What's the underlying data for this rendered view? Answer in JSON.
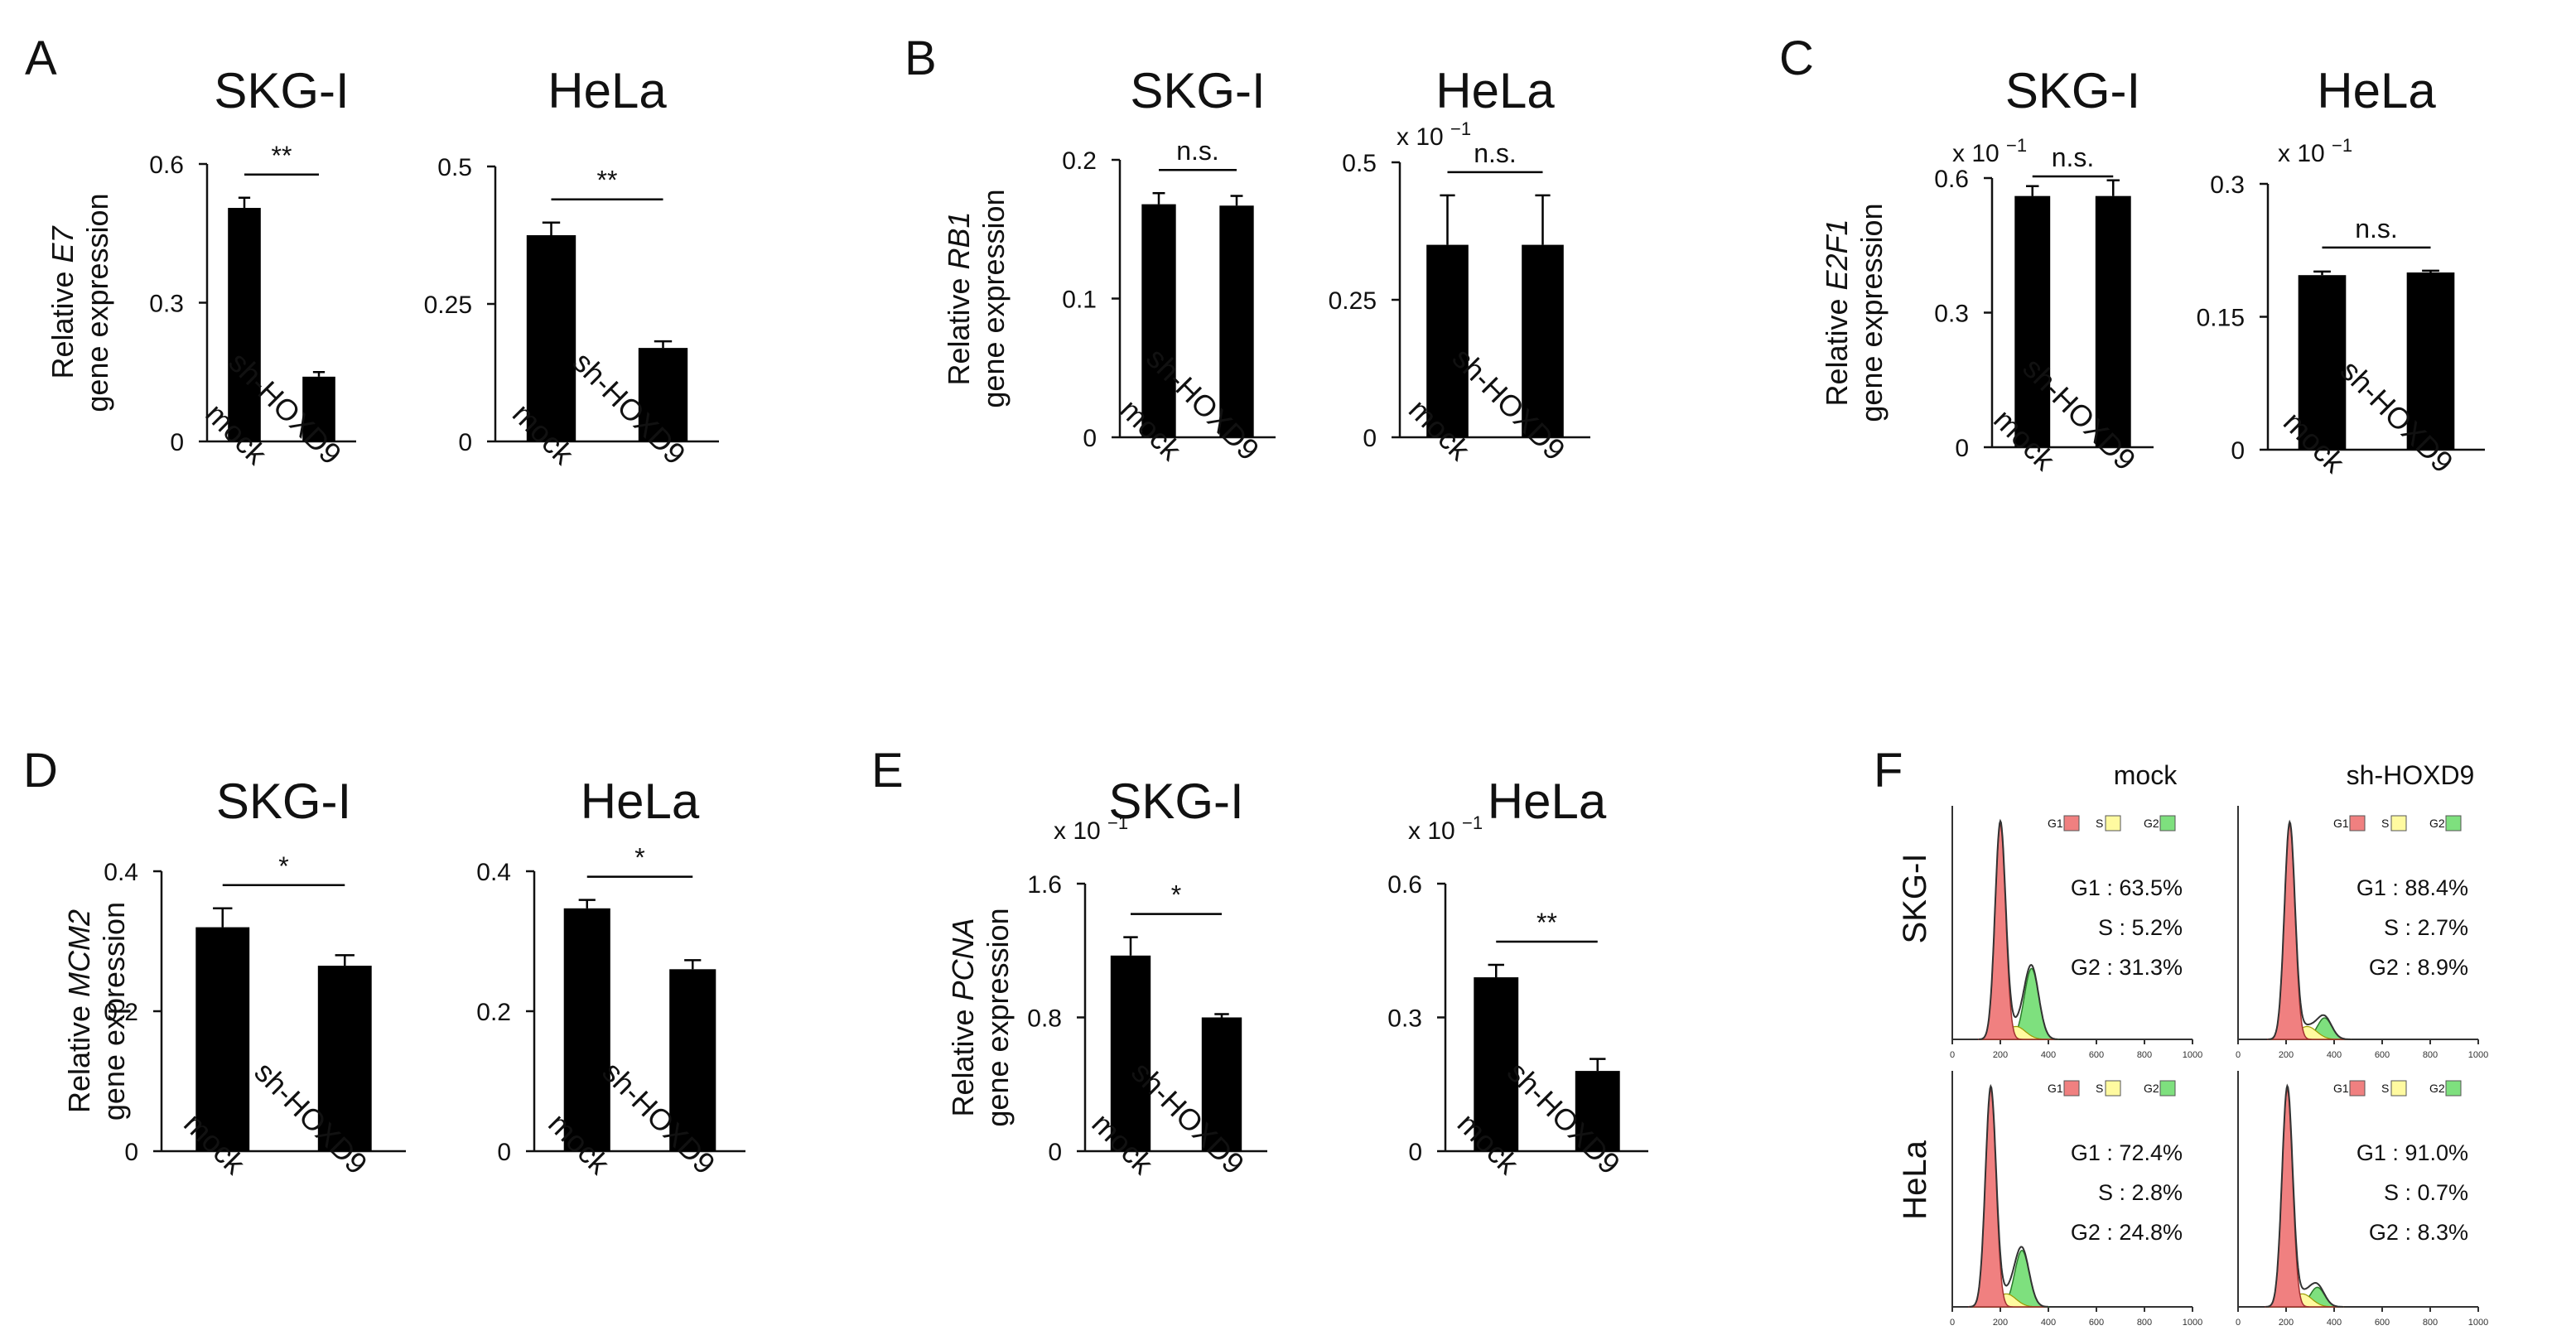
{
  "chart_data": [
    {
      "panel": "A",
      "type": "bar",
      "title": "SKG-I",
      "categories": [
        "mock",
        "sh-HOXD9"
      ],
      "values": [
        0.505,
        0.14
      ],
      "errors": [
        0.022,
        0.01
      ],
      "ylim": [
        0,
        0.6
      ],
      "yticks": [
        "0",
        "0.3",
        "0.6"
      ],
      "ylabel_prefix": "Relative ",
      "ylabel_gene": "E7",
      "ylabel_line2": "gene expression",
      "multiplier": "",
      "significance": "**"
    },
    {
      "panel": "",
      "type": "bar",
      "title": "HeLa",
      "categories": [
        "mock",
        "sh-HOXD9"
      ],
      "values": [
        0.375,
        0.17
      ],
      "errors": [
        0.023,
        0.012
      ],
      "ylim": [
        0,
        0.5
      ],
      "yticks": [
        "0",
        "0.25",
        "0.5"
      ],
      "multiplier": "",
      "significance": "**"
    },
    {
      "panel": "B",
      "type": "bar",
      "title": "SKG-I",
      "categories": [
        "mock",
        "sh-HOXD9"
      ],
      "values": [
        0.168,
        0.167
      ],
      "errors": [
        0.008,
        0.007
      ],
      "ylim": [
        0,
        0.2
      ],
      "yticks": [
        "0",
        "0.1",
        "0.2"
      ],
      "ylabel_prefix": "Relative ",
      "ylabel_gene": "RB1",
      "ylabel_line2": "gene expression",
      "multiplier": "",
      "significance": "n.s."
    },
    {
      "panel": "",
      "type": "bar",
      "title": "HeLa",
      "categories": [
        "mock",
        "sh-HOXD9"
      ],
      "values": [
        0.35,
        0.35
      ],
      "errors": [
        0.09,
        0.09
      ],
      "ylim": [
        0,
        0.5
      ],
      "yticks": [
        "0",
        "0.25",
        "0.5"
      ],
      "multiplier": "x 10",
      "multiplier_exp": "−1",
      "significance": "n.s."
    },
    {
      "panel": "C",
      "type": "bar",
      "title": "SKG-I",
      "categories": [
        "mock",
        "sh-HOXD9"
      ],
      "values": [
        0.56,
        0.56
      ],
      "errors": [
        0.022,
        0.035
      ],
      "ylim": [
        0,
        0.6
      ],
      "yticks": [
        "0",
        "0.3",
        "0.6"
      ],
      "ylabel_prefix": "Relative ",
      "ylabel_gene": "E2F1",
      "ylabel_line2": "gene expression",
      "multiplier": "x 10",
      "multiplier_exp": "−1",
      "significance": "n.s."
    },
    {
      "panel": "",
      "type": "bar",
      "title": "HeLa",
      "categories": [
        "mock",
        "sh-HOXD9"
      ],
      "values": [
        0.197,
        0.2
      ],
      "errors": [
        0.004,
        0.002
      ],
      "ylim": [
        0,
        0.3
      ],
      "yticks": [
        "0",
        "0.15",
        "0.3"
      ],
      "multiplier": "x 10",
      "multiplier_exp": "−1",
      "significance": "n.s."
    },
    {
      "panel": "D",
      "type": "bar",
      "title": "SKG-I",
      "categories": [
        "mock",
        "sh-HOXD9"
      ],
      "values": [
        0.32,
        0.265
      ],
      "errors": [
        0.027,
        0.015
      ],
      "ylim": [
        0,
        0.4
      ],
      "yticks": [
        "0",
        "0.2",
        "0.4"
      ],
      "ylabel_prefix": "Relative ",
      "ylabel_gene": "MCM2",
      "ylabel_line2": "gene expression",
      "multiplier": "",
      "significance": "*"
    },
    {
      "panel": "",
      "type": "bar",
      "title": "HeLa",
      "categories": [
        "mock",
        "sh-HOXD9"
      ],
      "values": [
        0.347,
        0.26
      ],
      "errors": [
        0.012,
        0.013
      ],
      "ylim": [
        0,
        0.4
      ],
      "yticks": [
        "0",
        "0.2",
        "0.4"
      ],
      "multiplier": "",
      "significance": "*"
    },
    {
      "panel": "E",
      "type": "bar",
      "title": "SKG-I",
      "categories": [
        "mock",
        "sh-HOXD9"
      ],
      "values": [
        1.17,
        0.8
      ],
      "errors": [
        0.11,
        0.02
      ],
      "ylim": [
        0,
        1.6
      ],
      "yticks": [
        "0",
        "0.8",
        "1.6"
      ],
      "ylabel_prefix": "Relative ",
      "ylabel_gene": "PCNA",
      "ylabel_line2": "gene expression",
      "multiplier": "x 10",
      "multiplier_exp": "−1",
      "significance": "*"
    },
    {
      "panel": "",
      "type": "bar",
      "title": "HeLa",
      "categories": [
        "mock",
        "sh-HOXD9"
      ],
      "values": [
        0.39,
        0.18
      ],
      "errors": [
        0.028,
        0.027
      ],
      "ylim": [
        0,
        0.6
      ],
      "yticks": [
        "0",
        "0.3",
        "0.6"
      ],
      "multiplier": "x 10",
      "multiplier_exp": "−1",
      "significance": "**"
    }
  ],
  "flow": {
    "panel": "F",
    "columns": [
      "mock",
      "sh-HOXD9"
    ],
    "rows": [
      "SKG-I",
      "HeLa"
    ],
    "legend": [
      "G1",
      "S",
      "G2"
    ],
    "xticks": [
      "0",
      "200",
      "400",
      "600",
      "800",
      "1000"
    ],
    "colors": {
      "G1": "#f08080",
      "S": "#fffaa0",
      "G2": "#7ee07e"
    },
    "plots": [
      {
        "g1_peak": 200,
        "g2_peak": 330,
        "g2_height": 0.33,
        "stats": [
          "G1 : 63.5%",
          "S : 5.2%",
          "G2 : 31.3%"
        ]
      },
      {
        "g1_peak": 215,
        "g2_peak": 360,
        "g2_height": 0.1,
        "stats": [
          "G1 : 88.4%",
          "S : 2.7%",
          "G2 : 8.9%"
        ]
      },
      {
        "g1_peak": 160,
        "g2_peak": 290,
        "g2_height": 0.26,
        "stats": [
          "G1 : 72.4%",
          "S : 2.8%",
          "G2 : 24.8%"
        ]
      },
      {
        "g1_peak": 205,
        "g2_peak": 330,
        "g2_height": 0.09,
        "stats": [
          "G1 : 91.0%",
          "S : 0.7%",
          "G2 : 8.3%"
        ]
      }
    ]
  }
}
